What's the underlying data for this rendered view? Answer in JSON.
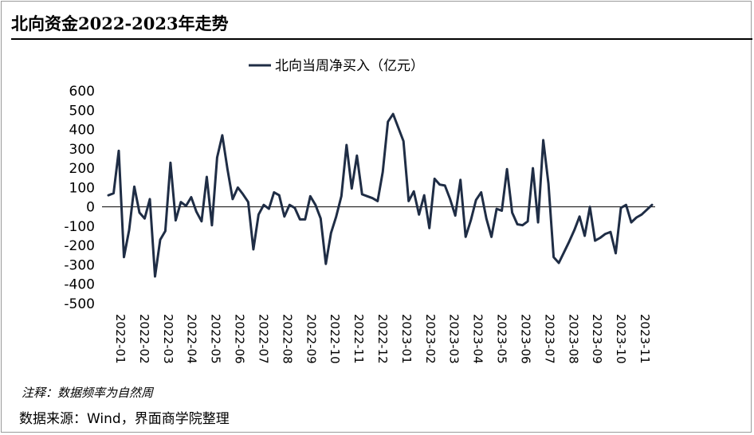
{
  "title": "北向资金2022-2023年走势",
  "footnote": "注释：数据频率为自然周",
  "source": "数据来源：Wind，界面商学院整理",
  "chart_data": {
    "type": "line",
    "title": "北向资金2022-2023年走势",
    "xlabel": "",
    "ylabel": "",
    "ylim": [
      -500,
      600
    ],
    "yticks": [
      600,
      500,
      400,
      300,
      200,
      100,
      0,
      -100,
      -200,
      -300,
      -400,
      -500
    ],
    "legend": "top-center",
    "grid": false,
    "color": "#1f2d45",
    "x_tick_labels": [
      "2022-01",
      "2022-02",
      "2022-03",
      "2022-04",
      "2022-05",
      "2022-06",
      "2022-07",
      "2022-08",
      "2022-09",
      "2022-10",
      "2022-11",
      "2022-12",
      "2023-01",
      "2023-02",
      "2023-03",
      "2023-04",
      "2023-05",
      "2023-06",
      "2023-07",
      "2023-08",
      "2023-09",
      "2023-10",
      "2023-11"
    ],
    "series": [
      {
        "name": "北向当周净买入（亿元）",
        "values": [
          60,
          70,
          290,
          -260,
          -120,
          105,
          -30,
          -60,
          40,
          -360,
          -170,
          -125,
          228,
          -70,
          25,
          5,
          50,
          -25,
          -75,
          155,
          -95,
          255,
          370,
          195,
          40,
          100,
          65,
          25,
          -220,
          -40,
          10,
          -10,
          75,
          60,
          -50,
          10,
          -5,
          -65,
          -65,
          55,
          10,
          -60,
          -295,
          -135,
          -50,
          55,
          320,
          95,
          265,
          65,
          55,
          45,
          30,
          180,
          440,
          480,
          410,
          340,
          30,
          80,
          -40,
          60,
          -110,
          145,
          115,
          110,
          40,
          -45,
          140,
          -155,
          -70,
          35,
          75,
          -60,
          -155,
          -10,
          -20,
          195,
          -30,
          -90,
          -95,
          -75,
          200,
          -80,
          345,
          120,
          -260,
          -290,
          -235,
          -180,
          -120,
          -50,
          -150,
          0,
          -175,
          -160,
          -140,
          -130,
          -240,
          -5,
          10,
          -80,
          -55,
          -40,
          -15,
          10
        ]
      }
    ]
  }
}
